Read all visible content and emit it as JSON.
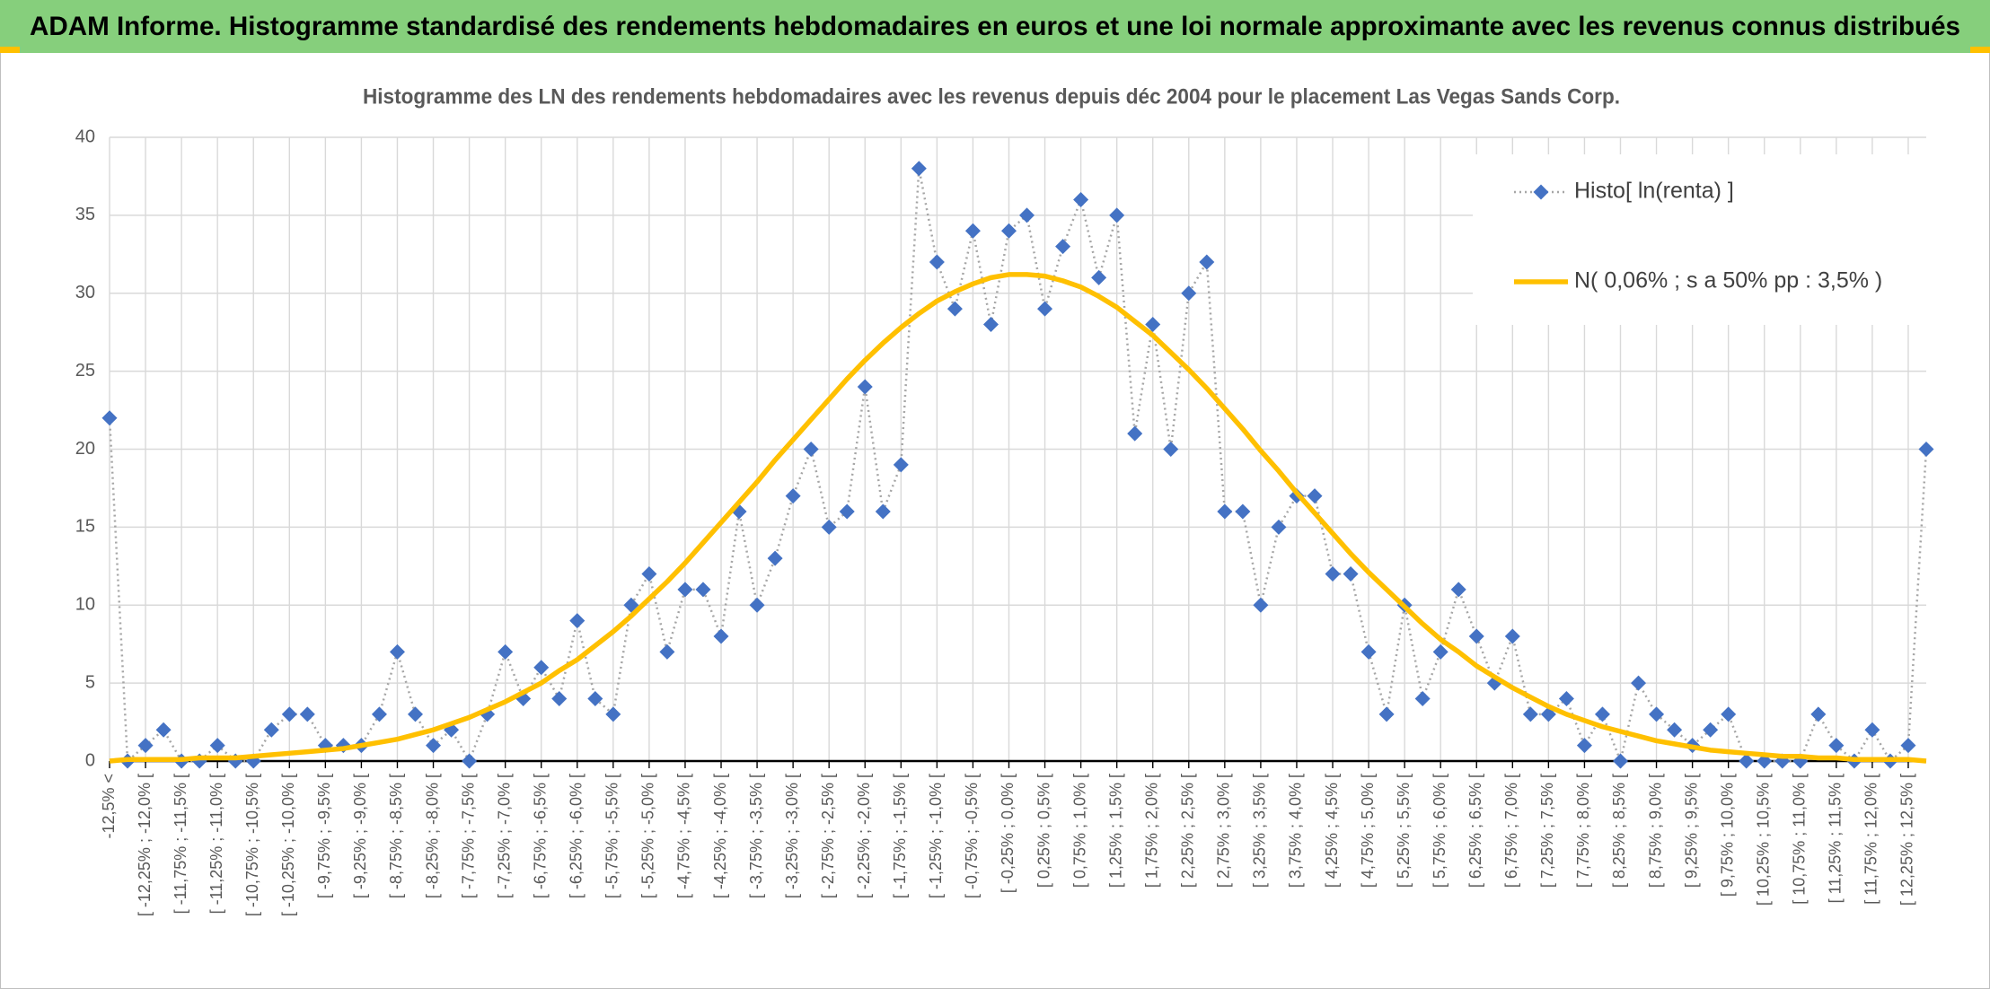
{
  "header": {
    "title": "ADAM Informe. Histogramme standardisé des rendements hebdomadaires en euros et une loi normale approximante avec les revenus connus distribués"
  },
  "chart_data": {
    "type": "line",
    "title": "Histogramme des LN des rendements hebdomadaires avec les revenus depuis déc 2004 pour le placement Las Vegas Sands Corp.",
    "categories": [
      "-12,5% <",
      null,
      "[ -12,25% ; -12,0% [",
      null,
      "[ -11,75% ; -11,5% [",
      null,
      "[ -11,25% ; -11,0% [",
      null,
      "[ -10,75% ; -10,5% [",
      null,
      "[ -10,25% ; -10,0% [",
      null,
      "[ -9,75% ; -9,5% [",
      null,
      "[ -9,25% ; -9,0% [",
      null,
      "[ -8,75% ; -8,5% [",
      null,
      "[ -8,25% ; -8,0% [",
      null,
      "[ -7,75% ; -7,5% [",
      null,
      "[ -7,25% ; -7,0% [",
      null,
      "[ -6,75% ; -6,5% [",
      null,
      "[ -6,25% ; -6,0% [",
      null,
      "[ -5,75% ; -5,5% [",
      null,
      "[ -5,25% ; -5,0% [",
      null,
      "[ -4,75% ; -4,5% [",
      null,
      "[ -4,25% ; -4,0% [",
      null,
      "[ -3,75% ; -3,5% [",
      null,
      "[ -3,25% ; -3,0% [",
      null,
      "[ -2,75% ; -2,5% [",
      null,
      "[ -2,25% ; -2,0% [",
      null,
      "[ -1,75% ; -1,5% [",
      null,
      "[ -1,25% ; -1,0% [",
      null,
      "[ -0,75% ; -0,5% [",
      null,
      "[ -0,25% ; 0,0% [",
      null,
      "[ 0,25% ; 0,5% [",
      null,
      "[ 0,75% ; 1,0% [",
      null,
      "[ 1,25% ; 1,5% [",
      null,
      "[ 1,75% ; 2,0% [",
      null,
      "[ 2,25% ; 2,5% [",
      null,
      "[ 2,75% ; 3,0% [",
      null,
      "[ 3,25% ; 3,5% [",
      null,
      "[ 3,75% ; 4,0% [",
      null,
      "[ 4,25% ; 4,5% [",
      null,
      "[ 4,75% ; 5,0% [",
      null,
      "[ 5,25% ; 5,5% [",
      null,
      "[ 5,75% ; 6,0% [",
      null,
      "[ 6,25% ; 6,5% [",
      null,
      "[ 6,75% ; 7,0% [",
      null,
      "[ 7,25% ; 7,5% [",
      null,
      "[ 7,75% ; 8,0% [",
      null,
      "[ 8,25% ; 8,5% [",
      null,
      "[ 8,75% ; 9,0% [",
      null,
      "[ 9,25% ; 9,5% [",
      null,
      "[ 9,75% ; 10,0% [",
      null,
      "[ 10,25% ; 10,5% [",
      null,
      "[ 10,75% ; 11,0% [",
      null,
      "[ 11,25% ; 11,5% [",
      null,
      "[ 11,75% ; 12,0% [",
      null,
      "[ 12,25% ; 12,5% [",
      null
    ],
    "series": [
      {
        "name": "Histo[ ln(renta) ]",
        "color": "#4472c4",
        "line_color": "#a6a6a6",
        "marker": "diamond",
        "values": [
          22,
          0,
          1,
          2,
          0,
          0,
          1,
          0,
          0,
          2,
          3,
          3,
          1,
          1,
          1,
          3,
          7,
          3,
          1,
          2,
          0,
          3,
          7,
          4,
          6,
          4,
          9,
          4,
          3,
          10,
          12,
          7,
          11,
          11,
          8,
          16,
          10,
          13,
          17,
          20,
          15,
          16,
          24,
          16,
          19,
          38,
          32,
          29,
          34,
          28,
          34,
          35,
          29,
          33,
          36,
          31,
          35,
          21,
          28,
          20,
          30,
          32,
          16,
          16,
          10,
          15,
          17,
          17,
          12,
          12,
          7,
          3,
          10,
          4,
          7,
          11,
          8,
          5,
          8,
          3,
          3,
          4,
          1,
          3,
          0,
          5,
          3,
          2,
          1,
          2,
          3,
          0,
          0,
          0,
          0,
          3,
          1,
          0,
          2,
          0,
          1,
          20
        ]
      },
      {
        "name": "N( 0,06% ; s a 50% pp : 3,5% )",
        "color": "#ffc000",
        "values": [
          0.0,
          0.1,
          0.1,
          0.1,
          0.1,
          0.2,
          0.2,
          0.2,
          0.3,
          0.4,
          0.5,
          0.6,
          0.7,
          0.8,
          1.0,
          1.2,
          1.4,
          1.7,
          2.0,
          2.4,
          2.8,
          3.3,
          3.8,
          4.4,
          5.0,
          5.8,
          6.5,
          7.4,
          8.3,
          9.3,
          10.4,
          11.5,
          12.7,
          14.0,
          15.3,
          16.6,
          17.9,
          19.3,
          20.6,
          21.9,
          23.2,
          24.5,
          25.7,
          26.8,
          27.8,
          28.7,
          29.5,
          30.1,
          30.6,
          31.0,
          31.2,
          31.2,
          31.1,
          30.8,
          30.4,
          29.8,
          29.1,
          28.2,
          27.3,
          26.2,
          25.1,
          23.9,
          22.6,
          21.3,
          19.9,
          18.6,
          17.2,
          15.9,
          14.6,
          13.3,
          12.1,
          11.0,
          9.9,
          8.8,
          7.8,
          7.0,
          6.1,
          5.4,
          4.7,
          4.1,
          3.5,
          3.0,
          2.6,
          2.2,
          1.9,
          1.6,
          1.3,
          1.1,
          0.9,
          0.7,
          0.6,
          0.5,
          0.4,
          0.3,
          0.3,
          0.2,
          0.2,
          0.1,
          0.1,
          0.1,
          0.1,
          0.0
        ]
      }
    ],
    "ylim": [
      0,
      40
    ],
    "yticks": [
      0,
      5,
      10,
      15,
      20,
      25,
      30,
      35,
      40
    ],
    "grid": true,
    "legend": "upper right"
  }
}
